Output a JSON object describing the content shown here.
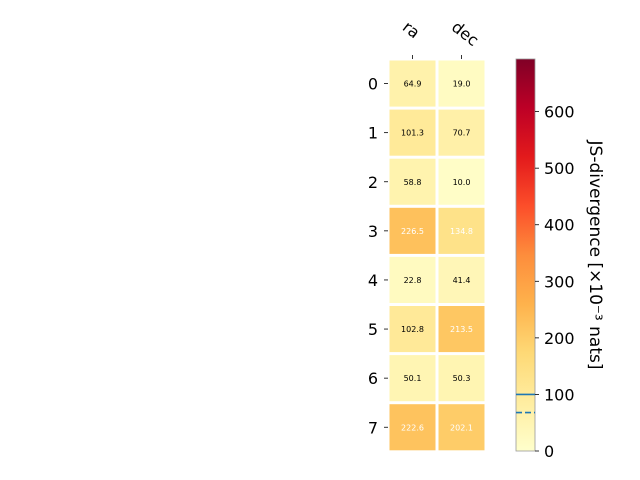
{
  "chart_data": {
    "type": "heatmap",
    "columns": [
      "ra",
      "dec"
    ],
    "rows": [
      "0",
      "1",
      "2",
      "3",
      "4",
      "5",
      "6",
      "7"
    ],
    "values": [
      [
        64.9,
        19.0
      ],
      [
        101.3,
        70.7
      ],
      [
        58.8,
        10.0
      ],
      [
        226.5,
        134.8
      ],
      [
        22.8,
        41.4
      ],
      [
        102.8,
        213.5
      ],
      [
        50.1,
        50.3
      ],
      [
        222.6,
        202.1
      ]
    ],
    "colorbar": {
      "label": "JS-divergence [×10⁻³ nats]",
      "min": 0,
      "max": 693,
      "ticks": [
        0,
        100,
        200,
        300,
        400,
        500,
        600
      ],
      "colormap": "YlOrRd",
      "reference_lines": [
        {
          "value": 100,
          "style": "solid",
          "color": "#1f77b4"
        },
        {
          "value": 68,
          "style": "dashed",
          "color": "#1f77b4"
        }
      ]
    },
    "text_color_threshold": 120
  }
}
